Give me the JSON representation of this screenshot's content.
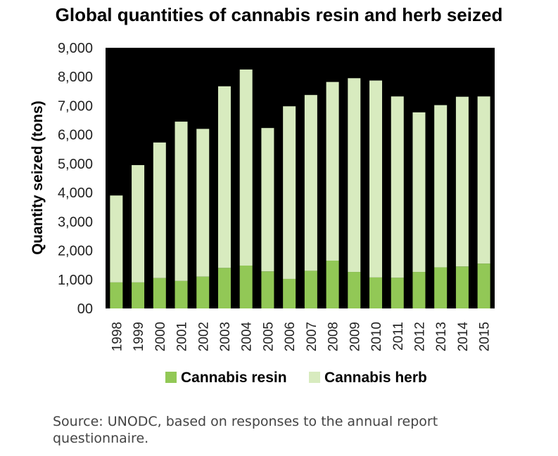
{
  "title": "Global quantities of cannabis resin and herb seized",
  "source": "Source: UNODC, based on responses to the annual report questionnaire.",
  "colors": {
    "plot_background": "#000000",
    "resin": "#92c856",
    "herb": "#d8ebbf"
  },
  "chart_data": {
    "type": "bar",
    "stacked": true,
    "title": "Global quantities of cannabis resin and herb seized",
    "xlabel": "",
    "ylabel": "Quantity seized (tons)",
    "ylim": [
      0,
      9000
    ],
    "yticks": [
      0,
      1000,
      2000,
      3000,
      4000,
      5000,
      6000,
      7000,
      8000,
      9000
    ],
    "ytick_labels": [
      "00",
      "1,000",
      "2,000",
      "3,000",
      "4,000",
      "5,000",
      "6,000",
      "7,000",
      "8,000",
      "9,000"
    ],
    "categories": [
      "1998",
      "1999",
      "2000",
      "2001",
      "2002",
      "2003",
      "2004",
      "2005",
      "2006",
      "2007",
      "2008",
      "2009",
      "2010",
      "2011",
      "2012",
      "2013",
      "2014",
      "2015"
    ],
    "series": [
      {
        "name": "Cannabis resin",
        "color": "#92c856",
        "values": [
          900,
          900,
          1050,
          950,
          1100,
          1400,
          1480,
          1280,
          1020,
          1300,
          1650,
          1260,
          1070,
          1060,
          1260,
          1420,
          1450,
          1550
        ]
      },
      {
        "name": "Cannabis herb",
        "color": "#d8ebbf",
        "values": [
          3000,
          4050,
          4680,
          5500,
          5100,
          6270,
          6770,
          4950,
          5960,
          6070,
          6170,
          6690,
          6800,
          6260,
          5510,
          5600,
          5860,
          5770
        ]
      }
    ],
    "grid": false,
    "legend_position": "bottom"
  }
}
